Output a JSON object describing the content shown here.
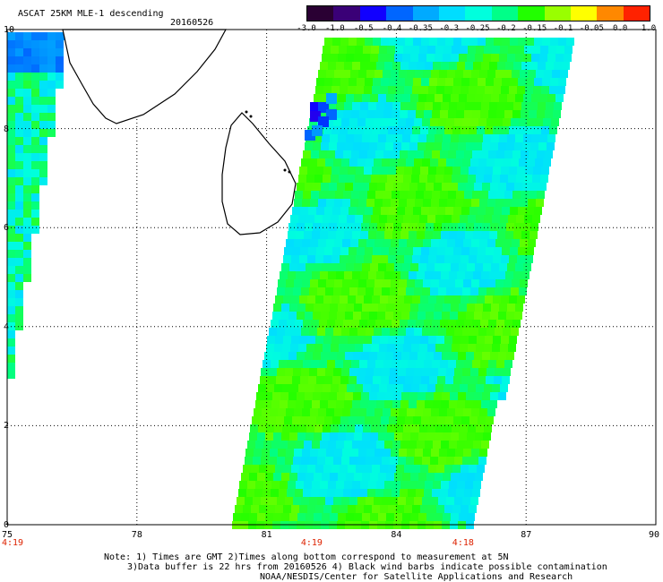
{
  "header": {
    "title": "ASCAT 25KM MLE-1 descending",
    "date": "20160526"
  },
  "colorbar": {
    "labels": [
      "-3.0",
      "-1.0",
      "-0.5",
      "-0.4",
      "-0.35",
      "-0.3",
      "-0.25",
      "-0.2",
      "-0.15",
      "-0.1",
      "-0.05",
      "0.0",
      "1.0"
    ],
    "colors": [
      "#2a0033",
      "#3a0077",
      "#1100ff",
      "#0066ff",
      "#00aaff",
      "#00ddff",
      "#00ffdd",
      "#00ff88",
      "#22ff00",
      "#99ff00",
      "#ffff00",
      "#ff8800",
      "#ff2200"
    ]
  },
  "axes": {
    "x_ticks": [
      "75",
      "78",
      "81",
      "84",
      "87",
      "90"
    ],
    "y_ticks": [
      "10",
      "8",
      "6",
      "4",
      "2",
      "0"
    ]
  },
  "times": [
    {
      "label": "4:19",
      "lon": 75
    },
    {
      "label": "4:19",
      "lon": 82
    },
    {
      "label": "4:18",
      "lon": 85.5
    }
  ],
  "notes": {
    "line1": "Note: 1) Times are GMT 2)Times along bottom correspond to measurement at 5N",
    "line2": "3)Data buffer is 22 hrs from 20160526 4) Black wind barbs indicate possible contamination",
    "line3": "NOAA/NESDIS/Center for Satellite Applications and Research"
  }
}
